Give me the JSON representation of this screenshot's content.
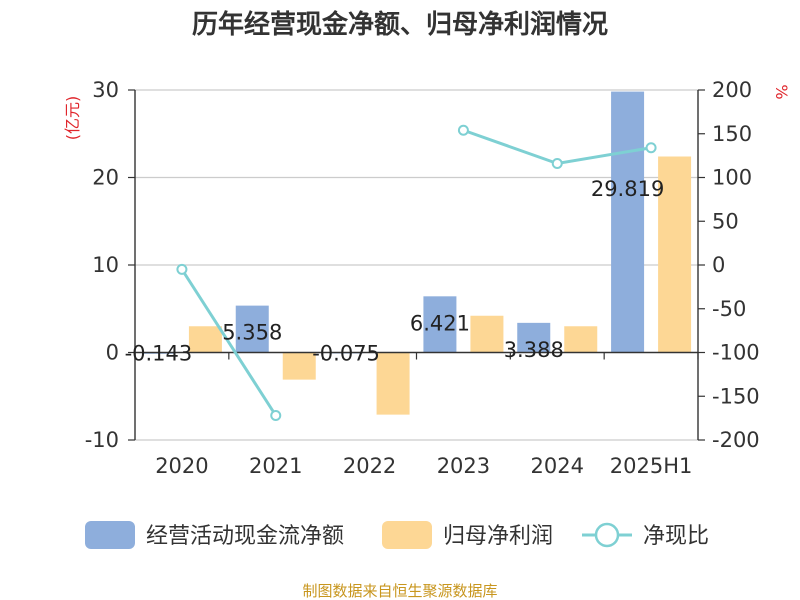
{
  "title": "历年经营现金净额、归母净利润情况",
  "source": "制图数据来自恒生聚源数据库",
  "chart_data": {
    "type": "bar",
    "categories": [
      "2020",
      "2021",
      "2022",
      "2023",
      "2024",
      "2025H1"
    ],
    "y_left": {
      "unit": "(亿元)",
      "ylim": [
        -10,
        30
      ],
      "ticks": [
        -10,
        0,
        10,
        20,
        30
      ]
    },
    "y_right": {
      "unit": "%",
      "ylim": [
        -200,
        200
      ],
      "ticks": [
        -200,
        -150,
        -100,
        -50,
        0,
        50,
        100,
        150,
        200
      ]
    },
    "series": [
      {
        "name": "经营活动现金流净额",
        "kind": "bar",
        "axis": "left",
        "color": "#8eaedc",
        "values": [
          -0.143,
          5.358,
          -0.075,
          6.421,
          3.388,
          29.819
        ],
        "labels": [
          "-0.143",
          "5.358",
          "-0.075",
          "6.421",
          "3.388",
          "29.819"
        ]
      },
      {
        "name": "归母净利润",
        "kind": "bar",
        "axis": "left",
        "color": "#fdd795",
        "values": [
          3.0,
          -3.1,
          -7.1,
          4.2,
          3.0,
          22.4
        ]
      },
      {
        "name": "净现比",
        "kind": "line",
        "axis": "right",
        "color": "#7ed0d3",
        "values": [
          -5,
          -172,
          null,
          154,
          116,
          134
        ]
      }
    ],
    "grid": true,
    "legend_position": "bottom"
  }
}
